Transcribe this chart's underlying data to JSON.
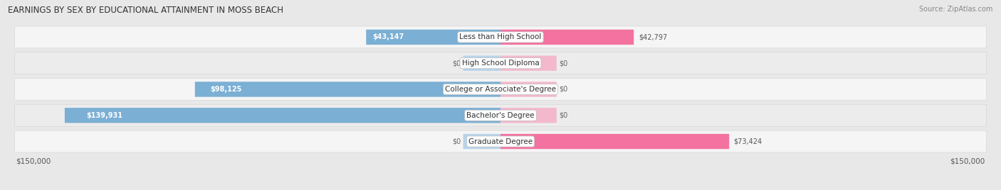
{
  "title": "EARNINGS BY SEX BY EDUCATIONAL ATTAINMENT IN MOSS BEACH",
  "source": "Source: ZipAtlas.com",
  "categories": [
    "Less than High School",
    "High School Diploma",
    "College or Associate's Degree",
    "Bachelor's Degree",
    "Graduate Degree"
  ],
  "male_values": [
    43147,
    0,
    98125,
    139931,
    0
  ],
  "female_values": [
    42797,
    0,
    0,
    0,
    73424
  ],
  "male_color": "#7bafd4",
  "male_light_color": "#b8d4ea",
  "female_color": "#f472a0",
  "female_light_color": "#f4b8cc",
  "bar_height": 0.58,
  "x_max": 150000,
  "background_color": "#e8e8e8",
  "row_bg_odd": "#f5f5f5",
  "row_bg_even": "#ececec",
  "title_fontsize": 8.5,
  "source_fontsize": 7,
  "tick_fontsize": 7.5,
  "value_fontsize": 7,
  "category_fontsize": 7.5
}
